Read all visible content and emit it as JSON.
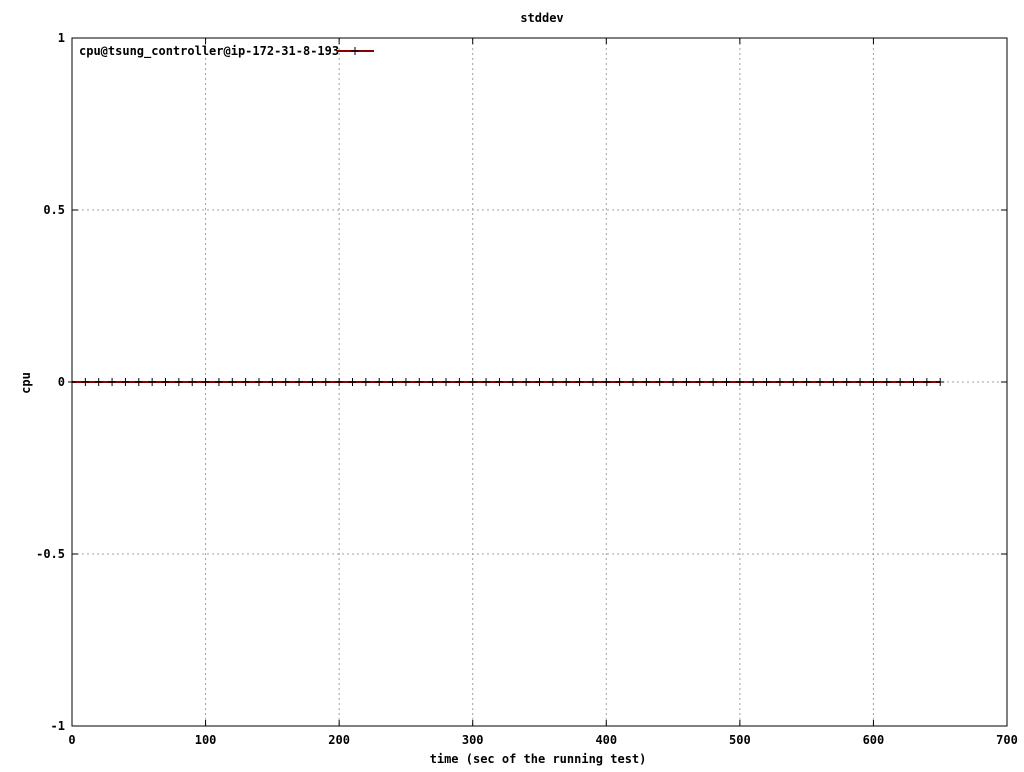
{
  "chart_data": {
    "type": "line",
    "title": "stddev",
    "xlabel": "time (sec of the running test)",
    "ylabel": "cpu",
    "xlim": [
      0,
      700
    ],
    "ylim": [
      -1,
      1
    ],
    "xticks": [
      0,
      100,
      200,
      300,
      400,
      500,
      600,
      700
    ],
    "yticks": [
      -1,
      -0.5,
      0,
      0.5,
      1
    ],
    "xtick_labels": [
      "0",
      "100",
      "200",
      "300",
      "400",
      "500",
      "600",
      "700"
    ],
    "ytick_labels": [
      "-1",
      "-0.5",
      "0",
      "0.5",
      "1"
    ],
    "grid": true,
    "legend_position": "top-left",
    "series": [
      {
        "name": "cpu@tsung_controller@ip-172-31-8-193",
        "color": "#8b0000",
        "marker": "plus",
        "x_start": 0,
        "x_end": 650,
        "x_step": 10,
        "constant_value": 0
      }
    ]
  }
}
